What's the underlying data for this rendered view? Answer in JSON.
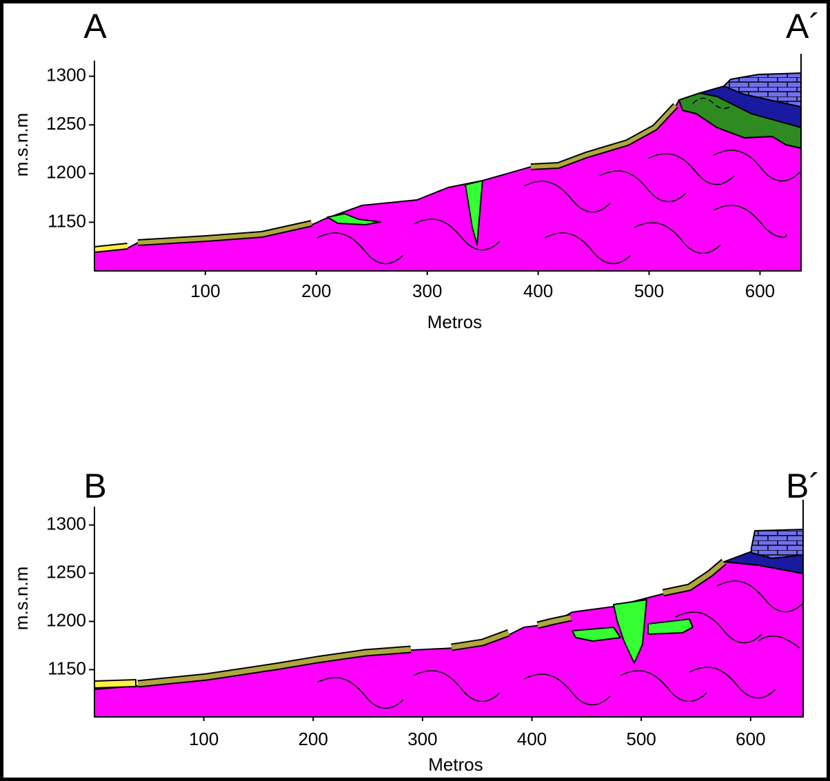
{
  "sections": [
    {
      "start_label": "A",
      "end_label": "A´",
      "y_label": "m.s.n.m",
      "x_label": "Metros",
      "xlim": [
        0,
        637
      ],
      "ylim": [
        1100,
        1316
      ],
      "xticks": [
        100,
        200,
        300,
        400,
        500,
        600
      ],
      "yticks": [
        1150,
        1200,
        1250,
        1300
      ]
    },
    {
      "start_label": "B",
      "end_label": "B´",
      "y_label": "m.s.n.m",
      "x_label": "Metros",
      "xlim": [
        0,
        648
      ],
      "ylim": [
        1101,
        1319
      ],
      "xticks": [
        100,
        200,
        300,
        400,
        500,
        600
      ],
      "yticks": [
        1150,
        1200,
        1250,
        1300
      ]
    }
  ]
}
